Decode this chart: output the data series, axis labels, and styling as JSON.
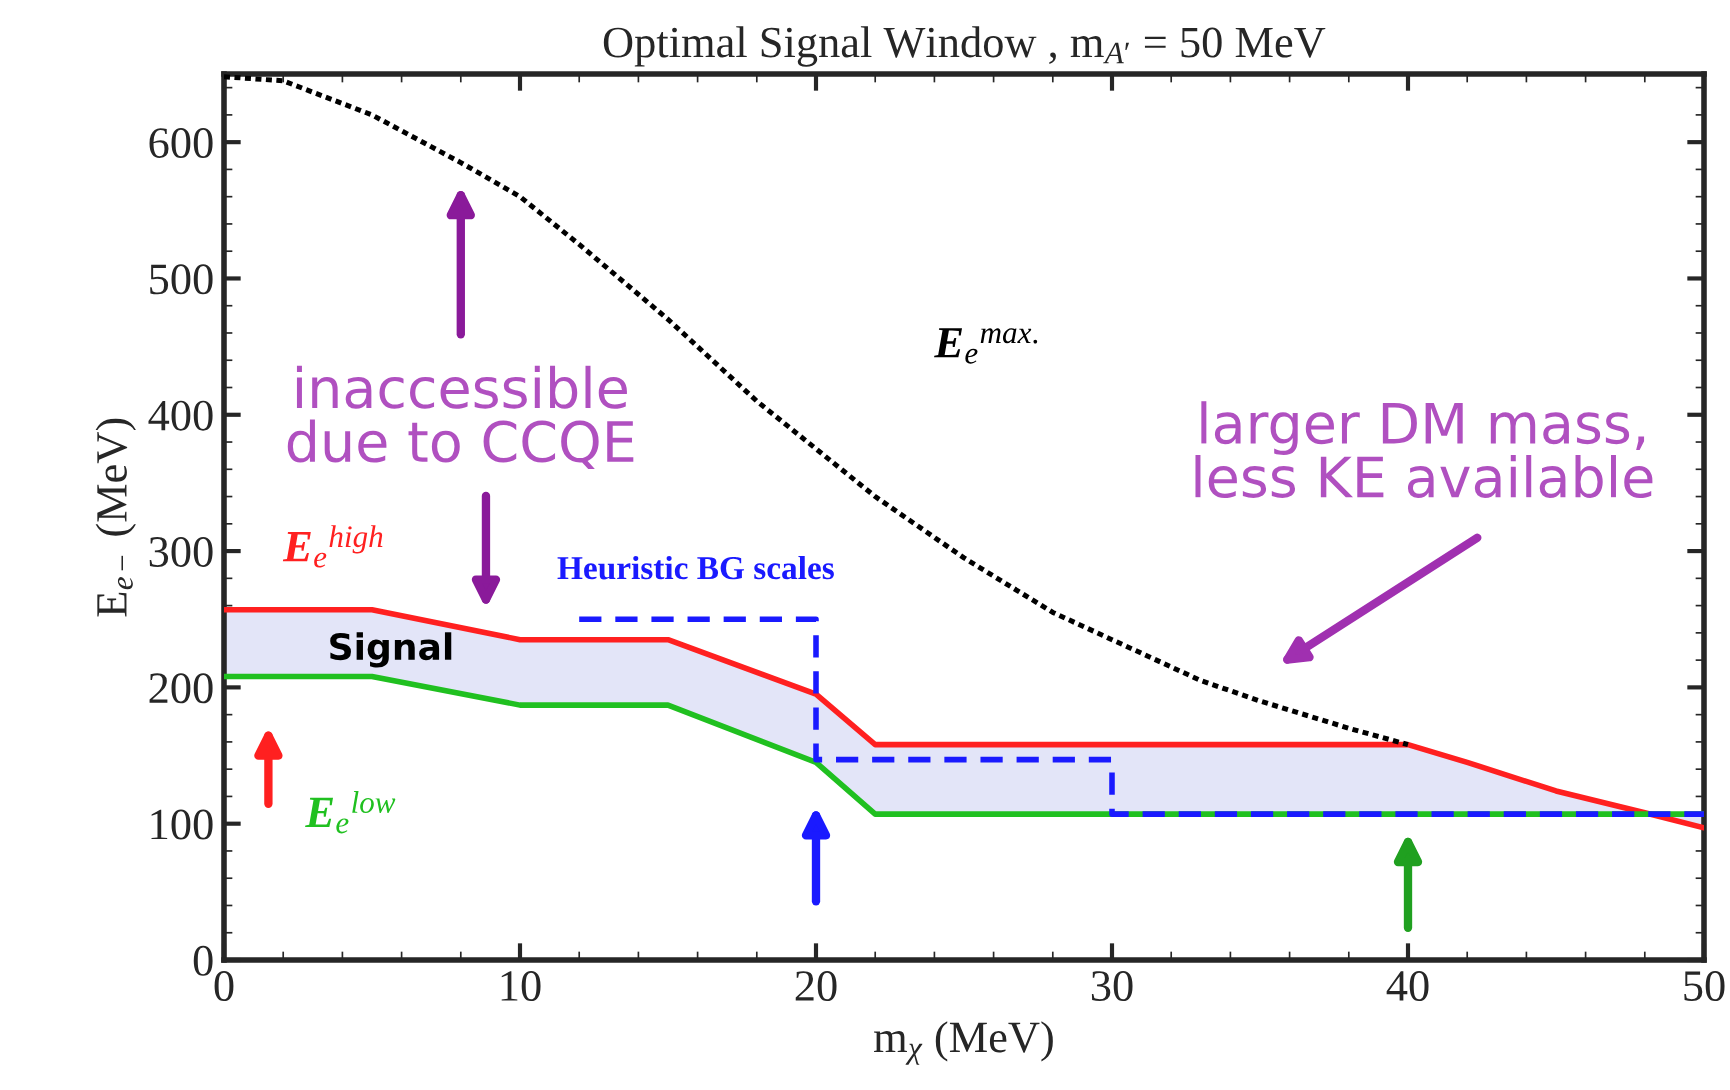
{
  "chart_data": {
    "type": "line",
    "title": "Optimal Signal Window , m$_{A′}$ = 50 MeV",
    "xlabel": "m$_{χ}$ (MeV)",
    "ylabel": "E$_{e−}$ (MeV)",
    "xlim": [
      0,
      50
    ],
    "ylim": [
      0,
      650
    ],
    "xticks": [
      0,
      10,
      20,
      30,
      40,
      50
    ],
    "yticks": [
      0,
      100,
      200,
      300,
      400,
      500,
      600
    ],
    "grid": false,
    "legend": false,
    "series": [
      {
        "name": "E$_{e}$$^{max.}$",
        "color": "#000000",
        "line_style": "dotted",
        "x": [
          0,
          2,
          5,
          8,
          10,
          12,
          15,
          18,
          20,
          22,
          25,
          28,
          30,
          33,
          35,
          38,
          40
        ],
        "values": [
          648,
          645,
          620,
          585,
          560,
          525,
          470,
          410,
          375,
          340,
          295,
          255,
          235,
          205,
          190,
          170,
          158
        ]
      },
      {
        "name": "E$_{e}$$^{high}$",
        "color": "#ff2020",
        "line_style": "solid",
        "x": [
          0,
          5,
          10,
          15,
          20,
          22,
          40,
          42,
          45,
          48,
          50
        ],
        "values": [
          257,
          257,
          235,
          235,
          195,
          158,
          158,
          145,
          124,
          108,
          97
        ]
      },
      {
        "name": "E$_{e}$$^{low}$",
        "color": "#20c020",
        "line_style": "solid",
        "x": [
          0,
          5,
          10,
          15,
          20,
          22,
          50
        ],
        "values": [
          208,
          208,
          187,
          187,
          145,
          107,
          107
        ]
      },
      {
        "name": "Heuristic BG scales",
        "color": "#1a1aff",
        "line_style": "dashed",
        "x": [
          12,
          20,
          20,
          30,
          30,
          50
        ],
        "values": [
          250,
          250,
          147,
          147,
          107,
          107
        ]
      }
    ],
    "annotations": [
      "inaccessible\ndue to CCQE",
      "larger DM mass,\nless KE available",
      "Signal"
    ]
  }
}
